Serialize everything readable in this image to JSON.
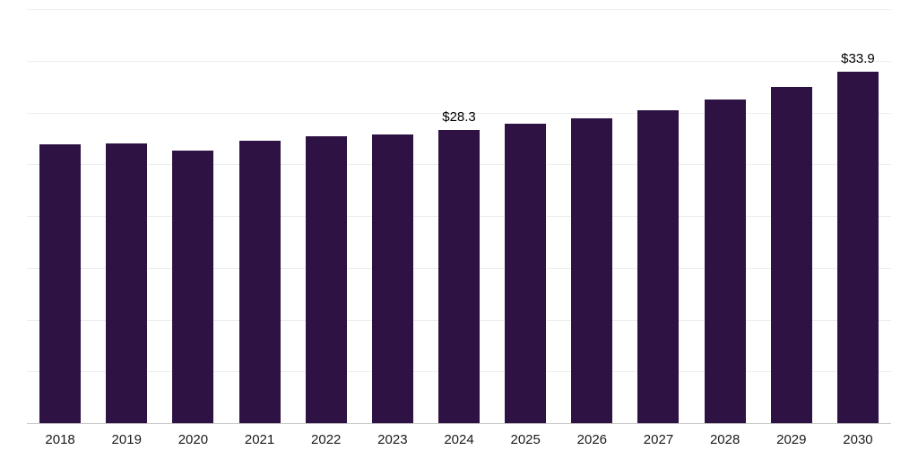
{
  "chart_data": {
    "type": "bar",
    "title": "",
    "xlabel": "",
    "ylabel": "",
    "categories": [
      "2018",
      "2019",
      "2020",
      "2021",
      "2022",
      "2023",
      "2024",
      "2025",
      "2026",
      "2027",
      "2028",
      "2029",
      "2030"
    ],
    "values": [
      26.9,
      27.0,
      26.3,
      27.3,
      27.7,
      27.9,
      28.3,
      28.9,
      29.4,
      30.2,
      31.3,
      32.5,
      33.9
    ],
    "data_labels": [
      null,
      null,
      null,
      null,
      null,
      null,
      "$28.3",
      null,
      null,
      null,
      null,
      null,
      "$33.9"
    ],
    "ylim": [
      0,
      40
    ],
    "grid_step": 5,
    "grid": true,
    "legend": false,
    "bar_color": "#2d1243",
    "gridline_color": "#eeeeee",
    "baseline_color": "#c6c6c6",
    "label_color": "#000000",
    "tick_color": "#1a1a1a"
  }
}
